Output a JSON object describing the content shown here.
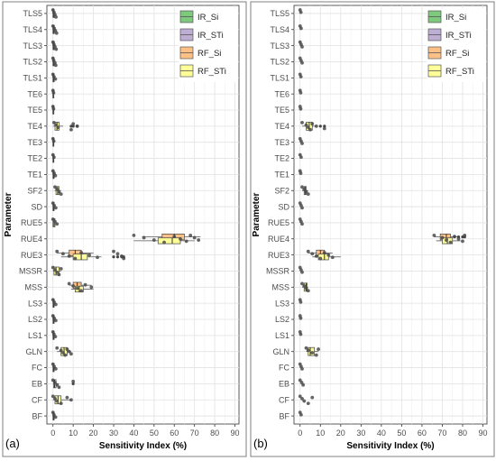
{
  "chart_data": [
    {
      "type": "box",
      "orientation": "horizontal",
      "panel_label": "(a)",
      "xlabel": "Sensitivity Index (%)",
      "ylabel": "Parameter",
      "xlim": [
        -3,
        92
      ],
      "xticks": [
        0,
        10,
        20,
        30,
        40,
        50,
        60,
        70,
        80,
        90
      ],
      "grid": true,
      "legend_position": "top-right",
      "legend": [
        {
          "name": "IR_Si",
          "color": "#7fc97f"
        },
        {
          "name": "IR_STi",
          "color": "#beaed4"
        },
        {
          "name": "RF_Si",
          "color": "#fdc086"
        },
        {
          "name": "RF_STi",
          "color": "#ffff99"
        }
      ],
      "categories": [
        "TLS5",
        "TLS4",
        "TLS3",
        "TLS2",
        "TLS1",
        "TE6",
        "TE5",
        "TE4",
        "TE3",
        "TE2",
        "TE1",
        "SF2",
        "SD",
        "RUE5",
        "RUE4",
        "RUE3",
        "MSSR",
        "MSS",
        "LS3",
        "LS2",
        "LS1",
        "GLN",
        "FC",
        "EB",
        "CF",
        "BF"
      ],
      "boxes": [
        {
          "category": "TLS5",
          "series": "RF_STi",
          "stats": [
            0,
            0,
            0.3,
            0.6,
            1.5
          ],
          "outliers": []
        },
        {
          "category": "TLS4",
          "series": "RF_STi",
          "stats": [
            0,
            0,
            0.3,
            0.7,
            1.6
          ],
          "outliers": []
        },
        {
          "category": "TLS3",
          "series": "RF_STi",
          "stats": [
            0,
            0,
            0.3,
            0.7,
            1.5
          ],
          "outliers": []
        },
        {
          "category": "TLS2",
          "series": "RF_STi",
          "stats": [
            0,
            0,
            0.3,
            0.6,
            1.4
          ],
          "outliers": []
        },
        {
          "category": "TLS1",
          "series": "RF_STi",
          "stats": [
            0,
            0,
            0.3,
            0.6,
            1.2
          ],
          "outliers": []
        },
        {
          "category": "TE6",
          "series": "RF_STi",
          "stats": [
            0,
            0,
            0.1,
            0.2,
            0.5
          ],
          "outliers": []
        },
        {
          "category": "TE5",
          "series": "RF_STi",
          "stats": [
            0,
            0,
            0.1,
            0.2,
            0.5
          ],
          "outliers": []
        },
        {
          "category": "TE4",
          "series": "RF_STi",
          "stats": [
            0,
            1,
            2,
            3,
            5
          ],
          "outliers": [
            9,
            10,
            12
          ]
        },
        {
          "category": "TE3",
          "series": "RF_STi",
          "stats": [
            0,
            0,
            0.2,
            0.4,
            1
          ],
          "outliers": []
        },
        {
          "category": "TE2",
          "series": "RF_STi",
          "stats": [
            0,
            0,
            0.2,
            0.4,
            1
          ],
          "outliers": []
        },
        {
          "category": "TE1",
          "series": "RF_STi",
          "stats": [
            0,
            0,
            0.3,
            0.6,
            1.3
          ],
          "outliers": []
        },
        {
          "category": "SF2",
          "series": "RF_STi",
          "stats": [
            0.8,
            1.5,
            2.3,
            3,
            4
          ],
          "outliers": []
        },
        {
          "category": "SD",
          "series": "RF_STi",
          "stats": [
            0,
            0,
            0.3,
            0.6,
            1.4
          ],
          "outliers": []
        },
        {
          "category": "RUE5",
          "series": "RF_STi",
          "stats": [
            0,
            0,
            0.5,
            1,
            2
          ],
          "outliers": []
        },
        {
          "category": "RUE4",
          "series": "RF_Si",
          "stats": [
            44,
            54,
            60,
            65,
            73
          ],
          "outliers": []
        },
        {
          "category": "RUE4",
          "series": "RF_STi",
          "stats": [
            40,
            52,
            59,
            63,
            70
          ],
          "outliers": []
        },
        {
          "category": "RUE3",
          "series": "RF_Si",
          "stats": [
            2,
            8,
            11,
            14,
            20
          ],
          "outliers": []
        },
        {
          "category": "RUE3",
          "series": "RF_STi",
          "stats": [
            4,
            10,
            14,
            17,
            24
          ],
          "outliers": [
            30,
            32,
            34,
            35
          ]
        },
        {
          "category": "MSSR",
          "series": "RF_STi",
          "stats": [
            0,
            0.5,
            1.5,
            3,
            4
          ],
          "outliers": []
        },
        {
          "category": "MSS",
          "series": "RF_Si",
          "stats": [
            8,
            10,
            12,
            14,
            19
          ],
          "outliers": []
        },
        {
          "category": "MSS",
          "series": "RF_STi",
          "stats": [
            9,
            11,
            13,
            15,
            20
          ],
          "outliers": []
        },
        {
          "category": "LS3",
          "series": "RF_STi",
          "stats": [
            0,
            0,
            0.3,
            0.6,
            1.5
          ],
          "outliers": []
        },
        {
          "category": "LS2",
          "series": "RF_STi",
          "stats": [
            0,
            0,
            0.3,
            0.6,
            1.5
          ],
          "outliers": []
        },
        {
          "category": "LS1",
          "series": "RF_STi",
          "stats": [
            0,
            0,
            0.3,
            0.6,
            1.2
          ],
          "outliers": []
        },
        {
          "category": "GLN",
          "series": "RF_STi",
          "stats": [
            2,
            4,
            5.5,
            7,
            9
          ],
          "outliers": []
        },
        {
          "category": "FC",
          "series": "RF_STi",
          "stats": [
            0,
            0,
            0.3,
            0.6,
            1.5
          ],
          "outliers": []
        },
        {
          "category": "EB",
          "series": "RF_STi",
          "stats": [
            0,
            0.3,
            0.8,
            1.5,
            3
          ],
          "outliers": [
            10
          ]
        },
        {
          "category": "CF",
          "series": "RF_STi",
          "stats": [
            0,
            1,
            2.5,
            4,
            9
          ],
          "outliers": []
        },
        {
          "category": "BF",
          "series": "RF_STi",
          "stats": [
            0,
            0,
            0.3,
            0.6,
            1.5
          ],
          "outliers": []
        }
      ],
      "points": [
        {
          "category": "TLS5",
          "x": [
            0,
            0.5,
            1,
            1.5
          ]
        },
        {
          "category": "TLS4",
          "x": [
            0,
            0.6,
            1.2,
            1.8
          ]
        },
        {
          "category": "TLS3",
          "x": [
            0,
            0.5,
            1,
            1.6
          ]
        },
        {
          "category": "TLS2",
          "x": [
            0,
            0.4,
            1,
            1.4
          ]
        },
        {
          "category": "TLS1",
          "x": [
            0,
            0.5,
            1.2
          ]
        },
        {
          "category": "TE6",
          "x": [
            0,
            0.3
          ]
        },
        {
          "category": "TE5",
          "x": [
            0,
            0.3
          ]
        },
        {
          "category": "TE4",
          "x": [
            0.5,
            1.5,
            2.5,
            9,
            10,
            12
          ]
        },
        {
          "category": "TE3",
          "x": [
            0,
            0.4
          ]
        },
        {
          "category": "TE2",
          "x": [
            0,
            0.5
          ]
        },
        {
          "category": "TE1",
          "x": [
            0,
            0.6,
            1.2
          ]
        },
        {
          "category": "SF2",
          "x": [
            1,
            2,
            3,
            4
          ]
        },
        {
          "category": "SD",
          "x": [
            0,
            0.6,
            1.4
          ]
        },
        {
          "category": "RUE5",
          "x": [
            0,
            1,
            2
          ]
        },
        {
          "category": "RUE4",
          "x": [
            40,
            45,
            50,
            55,
            60,
            63,
            66,
            68,
            70,
            72
          ]
        },
        {
          "category": "RUE3",
          "x": [
            2,
            5,
            8,
            11,
            14,
            18,
            22,
            30,
            32,
            34,
            35
          ]
        },
        {
          "category": "MSSR",
          "x": [
            0,
            1,
            2,
            3,
            4
          ]
        },
        {
          "category": "MSS",
          "x": [
            8,
            10,
            12,
            14,
            16,
            19
          ]
        },
        {
          "category": "LS3",
          "x": [
            0,
            0.6,
            1.4
          ]
        },
        {
          "category": "LS2",
          "x": [
            0,
            0.6,
            1.4
          ]
        },
        {
          "category": "LS1",
          "x": [
            0,
            0.5,
            1.2
          ]
        },
        {
          "category": "GLN",
          "x": [
            2,
            4,
            5,
            6,
            7,
            8,
            9
          ]
        },
        {
          "category": "FC",
          "x": [
            0,
            0.6,
            1.4
          ]
        },
        {
          "category": "EB",
          "x": [
            0,
            1,
            2,
            3,
            10
          ]
        },
        {
          "category": "CF",
          "x": [
            0,
            1,
            2,
            4,
            7,
            9
          ]
        },
        {
          "category": "BF",
          "x": [
            0,
            0.5,
            1.3
          ]
        }
      ]
    },
    {
      "type": "box",
      "orientation": "horizontal",
      "panel_label": "(b)",
      "xlabel": "Sensitivity Index (%)",
      "ylabel": "Parameter",
      "xlim": [
        -3,
        92
      ],
      "xticks": [
        0,
        10,
        20,
        30,
        40,
        50,
        60,
        70,
        80,
        90
      ],
      "grid": true,
      "legend_position": "top-right",
      "legend": [
        {
          "name": "IR_Si",
          "color": "#7fc97f"
        },
        {
          "name": "IR_STi",
          "color": "#beaed4"
        },
        {
          "name": "RF_Si",
          "color": "#fdc086"
        },
        {
          "name": "RF_STi",
          "color": "#ffff99"
        }
      ],
      "categories": [
        "TLS5",
        "TLS4",
        "TLS3",
        "TLS2",
        "TLS1",
        "TE6",
        "TE5",
        "TE4",
        "TE3",
        "TE2",
        "TE1",
        "SF2",
        "SD",
        "RUE5",
        "RUE4",
        "RUE3",
        "MSSR",
        "MSS",
        "LS3",
        "LS2",
        "LS1",
        "GLN",
        "FC",
        "EB",
        "CF",
        "BF"
      ],
      "boxes": [
        {
          "category": "TE4",
          "series": "RF_STi",
          "stats": [
            1,
            3,
            4.5,
            6,
            8
          ],
          "outliers": [
            10,
            12
          ]
        },
        {
          "category": "SF2",
          "series": "RF_STi",
          "stats": [
            1,
            2,
            2.5,
            3,
            4
          ],
          "outliers": []
        },
        {
          "category": "RUE4",
          "series": "RF_Si",
          "stats": [
            66,
            69,
            72,
            74,
            78
          ],
          "outliers": [
            76,
            78,
            80,
            81
          ]
        },
        {
          "category": "RUE4",
          "series": "RF_STi",
          "stats": [
            67,
            70,
            72.5,
            75,
            79
          ],
          "outliers": []
        },
        {
          "category": "RUE3",
          "series": "RF_Si",
          "stats": [
            4,
            8,
            10,
            12,
            16
          ],
          "outliers": []
        },
        {
          "category": "RUE3",
          "series": "RF_STi",
          "stats": [
            6,
            9,
            12,
            14,
            20
          ],
          "outliers": []
        },
        {
          "category": "MSS",
          "series": "RF_STi",
          "stats": [
            1,
            2,
            3,
            3.5,
            4
          ],
          "outliers": []
        },
        {
          "category": "GLN",
          "series": "RF_STi",
          "stats": [
            3,
            4,
            5,
            7,
            9
          ],
          "outliers": []
        }
      ],
      "points": [
        {
          "category": "TLS5",
          "x": [
            0,
            0.4
          ]
        },
        {
          "category": "TLS4",
          "x": [
            0,
            0.5
          ]
        },
        {
          "category": "TLS3",
          "x": [
            0,
            0.5,
            1
          ]
        },
        {
          "category": "TLS2",
          "x": [
            0,
            0.5,
            1
          ]
        },
        {
          "category": "TLS1",
          "x": [
            0,
            0.4
          ]
        },
        {
          "category": "TE6",
          "x": [
            0,
            0.3
          ]
        },
        {
          "category": "TE5",
          "x": [
            0,
            0.3
          ]
        },
        {
          "category": "TE4",
          "x": [
            1,
            3,
            4,
            5,
            6,
            8,
            12
          ]
        },
        {
          "category": "TE3",
          "x": [
            0,
            0.5,
            1
          ]
        },
        {
          "category": "TE2",
          "x": [
            0,
            0.5
          ]
        },
        {
          "category": "TE1",
          "x": [
            0,
            0.3
          ]
        },
        {
          "category": "SF2",
          "x": [
            1,
            2,
            3,
            4
          ]
        },
        {
          "category": "SD",
          "x": [
            0,
            0.5,
            1
          ]
        },
        {
          "category": "RUE5",
          "x": [
            0,
            0.5,
            1
          ]
        },
        {
          "category": "RUE4",
          "x": [
            66,
            70,
            72,
            74,
            76,
            78,
            80,
            81
          ]
        },
        {
          "category": "RUE3",
          "x": [
            4,
            6,
            8,
            10,
            12,
            14,
            16
          ]
        },
        {
          "category": "MSSR",
          "x": [
            0,
            0.5,
            1
          ]
        },
        {
          "category": "MSS",
          "x": [
            1,
            2,
            3,
            4
          ]
        },
        {
          "category": "LS3",
          "x": [
            0,
            0.3
          ]
        },
        {
          "category": "LS2",
          "x": [
            0,
            0.3
          ]
        },
        {
          "category": "LS1",
          "x": [
            0,
            0.3
          ]
        },
        {
          "category": "GLN",
          "x": [
            3,
            4,
            6,
            8,
            9
          ]
        },
        {
          "category": "FC",
          "x": [
            0,
            0.5,
            1
          ]
        },
        {
          "category": "EB",
          "x": [
            0,
            0.8,
            1.5
          ]
        },
        {
          "category": "CF",
          "x": [
            0,
            1,
            2,
            4,
            6
          ]
        },
        {
          "category": "BF",
          "x": [
            0,
            0.5
          ]
        }
      ]
    }
  ]
}
